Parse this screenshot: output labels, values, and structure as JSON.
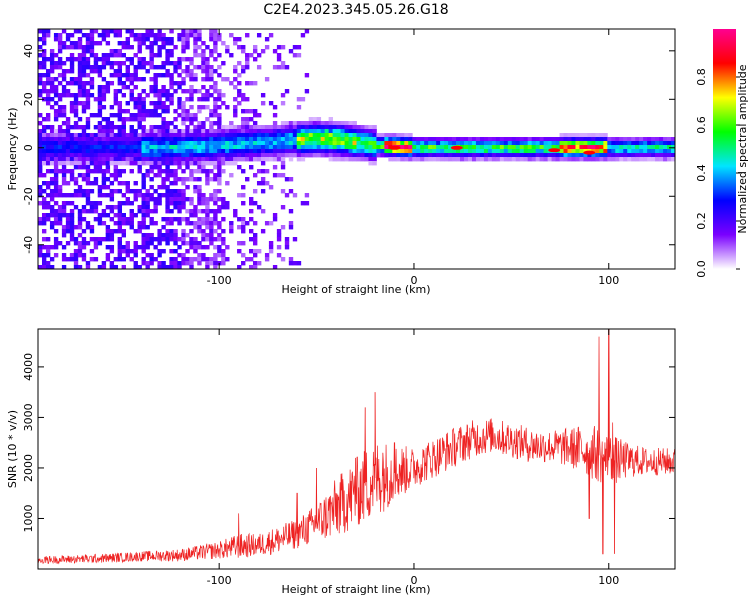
{
  "title": "C2E4.2023.345.05.26.G18",
  "chart_data": [
    {
      "type": "heatmap",
      "xlabel": "Height of straight line (km)",
      "ylabel": "Frequency (Hz)",
      "xlim": [
        -193,
        134
      ],
      "ylim": [
        -50,
        49
      ],
      "xticks": [
        -100,
        0,
        100
      ],
      "yticks": [
        -40,
        -20,
        0,
        20,
        40
      ],
      "colorbar": {
        "label": "Normalized spectral amplitude",
        "range": [
          0.0,
          1.0
        ],
        "ticks": [
          0.0,
          0.2,
          0.4,
          0.6,
          0.8
        ],
        "colors": [
          "#ffffff",
          "#7a00ff",
          "#0000ff",
          "#00e5ff",
          "#00ff00",
          "#ffff00",
          "#ff0000",
          "#ff0090"
        ]
      },
      "ridge": {
        "center_freq": [
          {
            "x": -170,
            "f": 0
          },
          {
            "x": -120,
            "f": 0
          },
          {
            "x": -80,
            "f": 2
          },
          {
            "x": -50,
            "f": 4
          },
          {
            "x": -35,
            "f": 3
          },
          {
            "x": -20,
            "f": 1
          },
          {
            "x": 0,
            "f": 0
          },
          {
            "x": 100,
            "f": 0
          },
          {
            "x": 134,
            "f": 0
          }
        ],
        "band_segments": [
          {
            "x_start": -193,
            "x_end": -140,
            "peak_amplitude": 0.3
          },
          {
            "x_start": -140,
            "x_end": -60,
            "peak_amplitude": 0.45
          },
          {
            "x_start": -60,
            "x_end": -30,
            "peak_amplitude": 0.7
          },
          {
            "x_start": -30,
            "x_end": -16,
            "peak_amplitude": 0.6
          },
          {
            "x_start": -16,
            "x_end": 0,
            "peak_amplitude": 0.95
          },
          {
            "x_start": 0,
            "x_end": 75,
            "peak_amplitude": 0.6
          },
          {
            "x_start": 75,
            "x_end": 100,
            "peak_amplitude": 0.95
          },
          {
            "x_start": 100,
            "x_end": 134,
            "peak_amplitude": 0.5
          }
        ],
        "noise_region": {
          "x_start": -193,
          "x_end": -55,
          "freq_range": [
            -50,
            49
          ]
        },
        "max_peaks": [
          {
            "x": -10,
            "f": 0
          },
          {
            "x": 22,
            "f": 0
          },
          {
            "x": 72,
            "f": -1
          },
          {
            "x": 90,
            "f": -2
          }
        ]
      }
    },
    {
      "type": "line",
      "xlabel": "Height of straight line (km)",
      "ylabel": "SNR (10 * v/v)",
      "xlim": [
        -193,
        134
      ],
      "ylim": [
        0,
        4750
      ],
      "xticks": [
        -100,
        0,
        100
      ],
      "yticks": [
        1000,
        2000,
        3000,
        4000
      ],
      "color": "#ee2222",
      "series": [
        {
          "envelope": [
            [
              -193,
              100,
              250
            ],
            [
              -160,
              120,
              300
            ],
            [
              -140,
              150,
              350
            ],
            [
              -120,
              150,
              400
            ],
            [
              -100,
              200,
              550
            ],
            [
              -90,
              200,
              700
            ],
            [
              -80,
              250,
              700
            ],
            [
              -70,
              300,
              850
            ],
            [
              -60,
              400,
              1000
            ],
            [
              -50,
              500,
              1300
            ],
            [
              -40,
              600,
              1800
            ],
            [
              -30,
              800,
              2200
            ],
            [
              -20,
              1000,
              2600
            ],
            [
              -10,
              1300,
              2500
            ],
            [
              0,
              1600,
              2400
            ],
            [
              10,
              1800,
              2600
            ],
            [
              20,
              2000,
              2800
            ],
            [
              30,
              2200,
              2950
            ],
            [
              40,
              2300,
              3000
            ],
            [
              50,
              2200,
              2900
            ],
            [
              60,
              2100,
              2800
            ],
            [
              70,
              2100,
              2750
            ],
            [
              80,
              2000,
              2800
            ],
            [
              90,
              1800,
              2900
            ],
            [
              100,
              1600,
              2700
            ],
            [
              110,
              1800,
              2500
            ],
            [
              120,
              1850,
              2400
            ],
            [
              134,
              1850,
              2400
            ]
          ],
          "spikes": [
            [
              -90,
              1100
            ],
            [
              -60,
              1500
            ],
            [
              -50,
              2000
            ],
            [
              -30,
              2200
            ],
            [
              -25,
              3200
            ],
            [
              -20,
              3500
            ],
            [
              -16,
              2300
            ],
            [
              -10,
              2500
            ],
            [
              90,
              1000
            ],
            [
              95,
              4600
            ],
            [
              97,
              300
            ],
            [
              100,
              4750
            ],
            [
              102,
              2900
            ],
            [
              103,
              300
            ]
          ]
        }
      ]
    }
  ]
}
